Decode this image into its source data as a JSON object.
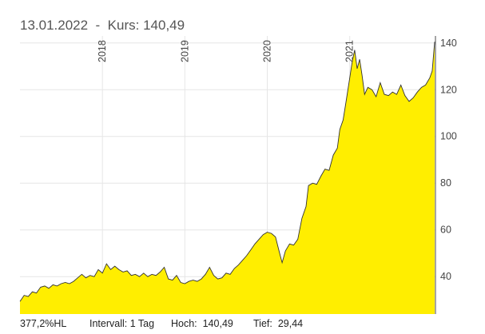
{
  "header": {
    "date": "13.01.2022",
    "separator": "-",
    "kurs_label": "Kurs:",
    "kurs_value": "140,49"
  },
  "footer": {
    "performance": "377,2%HL",
    "interval_label": "Intervall:",
    "interval_value": "1 Tag",
    "high_label": "Hoch:",
    "high_value": "140,49",
    "low_label": "Tief:",
    "low_value": "29,44"
  },
  "colors": {
    "fill": "#ffee00",
    "line": "#333333",
    "grid": "#e6e6e6",
    "accent_marker": "#4a4a4a"
  },
  "chart_data": {
    "type": "area",
    "title": "",
    "xlabel": "",
    "ylabel": "",
    "ylim": [
      24,
      143
    ],
    "y_ticks": [
      40,
      60,
      80,
      100,
      120,
      140
    ],
    "year_ticks": [
      {
        "label": "2018",
        "x": 2018.0
      },
      {
        "label": "2019",
        "x": 2019.0
      },
      {
        "label": "2020",
        "x": 2020.0
      },
      {
        "label": "2021",
        "x": 2021.0
      }
    ],
    "xlim": [
      2017.0,
      2022.04
    ],
    "grid": true,
    "series": [
      {
        "points": [
          [
            2017.0,
            29.4
          ],
          [
            2017.05,
            32.0
          ],
          [
            2017.1,
            31.5
          ],
          [
            2017.15,
            33.5
          ],
          [
            2017.2,
            33.0
          ],
          [
            2017.25,
            35.5
          ],
          [
            2017.3,
            36.0
          ],
          [
            2017.35,
            35.0
          ],
          [
            2017.4,
            36.5
          ],
          [
            2017.45,
            36.0
          ],
          [
            2017.5,
            37.0
          ],
          [
            2017.55,
            37.5
          ],
          [
            2017.6,
            37.0
          ],
          [
            2017.65,
            38.0
          ],
          [
            2017.7,
            39.5
          ],
          [
            2017.75,
            41.0
          ],
          [
            2017.8,
            39.5
          ],
          [
            2017.85,
            40.5
          ],
          [
            2017.9,
            40.0
          ],
          [
            2017.95,
            43.0
          ],
          [
            2018.0,
            41.5
          ],
          [
            2018.05,
            45.5
          ],
          [
            2018.1,
            43.0
          ],
          [
            2018.15,
            44.5
          ],
          [
            2018.2,
            43.0
          ],
          [
            2018.25,
            42.0
          ],
          [
            2018.3,
            42.5
          ],
          [
            2018.35,
            40.5
          ],
          [
            2018.4,
            41.0
          ],
          [
            2018.45,
            40.0
          ],
          [
            2018.5,
            41.5
          ],
          [
            2018.55,
            40.0
          ],
          [
            2018.6,
            41.0
          ],
          [
            2018.65,
            40.5
          ],
          [
            2018.7,
            42.0
          ],
          [
            2018.75,
            44.0
          ],
          [
            2018.8,
            39.0
          ],
          [
            2018.85,
            38.5
          ],
          [
            2018.9,
            40.5
          ],
          [
            2018.95,
            37.5
          ],
          [
            2019.0,
            37.0
          ],
          [
            2019.05,
            38.0
          ],
          [
            2019.1,
            38.5
          ],
          [
            2019.15,
            38.0
          ],
          [
            2019.2,
            39.0
          ],
          [
            2019.25,
            41.0
          ],
          [
            2019.3,
            44.0
          ],
          [
            2019.35,
            40.5
          ],
          [
            2019.4,
            39.0
          ],
          [
            2019.45,
            39.5
          ],
          [
            2019.5,
            41.5
          ],
          [
            2019.55,
            41.0
          ],
          [
            2019.6,
            43.5
          ],
          [
            2019.65,
            45.0
          ],
          [
            2019.7,
            47.0
          ],
          [
            2019.75,
            49.0
          ],
          [
            2019.8,
            51.5
          ],
          [
            2019.85,
            54.0
          ],
          [
            2019.9,
            56.0
          ],
          [
            2019.95,
            58.0
          ],
          [
            2020.0,
            59.0
          ],
          [
            2020.05,
            58.5
          ],
          [
            2020.1,
            57.0
          ],
          [
            2020.15,
            50.0
          ],
          [
            2020.18,
            46.0
          ],
          [
            2020.22,
            51.0
          ],
          [
            2020.27,
            54.0
          ],
          [
            2020.32,
            53.5
          ],
          [
            2020.37,
            56.0
          ],
          [
            2020.42,
            65.0
          ],
          [
            2020.47,
            70.0
          ],
          [
            2020.5,
            79.0
          ],
          [
            2020.55,
            80.0
          ],
          [
            2020.6,
            79.5
          ],
          [
            2020.65,
            83.0
          ],
          [
            2020.7,
            86.0
          ],
          [
            2020.75,
            85.5
          ],
          [
            2020.8,
            92.0
          ],
          [
            2020.85,
            95.0
          ],
          [
            2020.88,
            103.0
          ],
          [
            2020.92,
            107.0
          ],
          [
            2020.96,
            116.0
          ],
          [
            2021.0,
            125.0
          ],
          [
            2021.03,
            132.0
          ],
          [
            2021.06,
            137.0
          ],
          [
            2021.09,
            129.0
          ],
          [
            2021.12,
            133.0
          ],
          [
            2021.15,
            126.0
          ],
          [
            2021.18,
            118.0
          ],
          [
            2021.22,
            121.0
          ],
          [
            2021.27,
            120.0
          ],
          [
            2021.32,
            117.0
          ],
          [
            2021.37,
            123.0
          ],
          [
            2021.42,
            118.0
          ],
          [
            2021.47,
            117.5
          ],
          [
            2021.52,
            119.0
          ],
          [
            2021.57,
            118.0
          ],
          [
            2021.62,
            122.0
          ],
          [
            2021.67,
            117.5
          ],
          [
            2021.72,
            115.0
          ],
          [
            2021.77,
            116.5
          ],
          [
            2021.82,
            119.0
          ],
          [
            2021.87,
            121.0
          ],
          [
            2021.92,
            122.0
          ],
          [
            2021.97,
            125.0
          ],
          [
            2022.0,
            128.0
          ],
          [
            2022.03,
            140.49
          ]
        ]
      }
    ]
  }
}
